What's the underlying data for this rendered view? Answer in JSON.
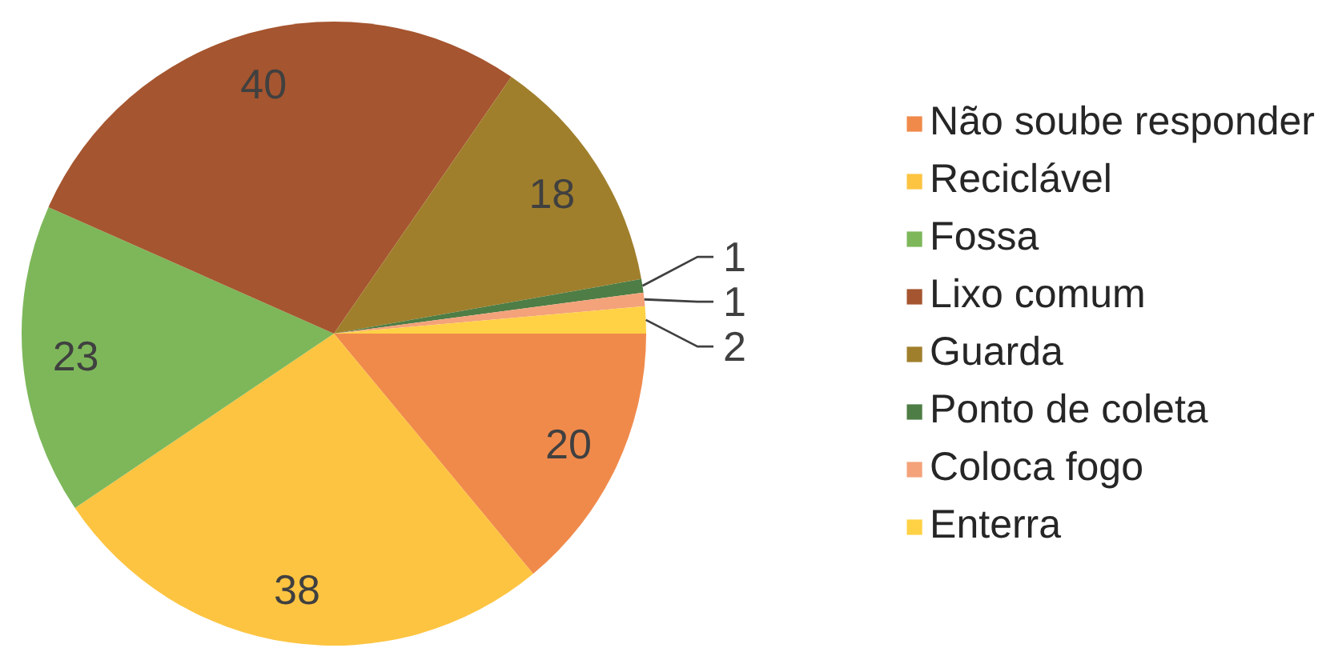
{
  "chart_data": {
    "type": "pie",
    "categories": [
      "Não soube responder",
      "Reciclável",
      "Fossa",
      "Lixo comum",
      "Guarda",
      "Ponto de coleta",
      "Coloca fogo",
      "Enterra"
    ],
    "values": [
      20,
      38,
      23,
      40,
      18,
      1,
      1,
      2
    ],
    "colors": [
      "#f08a4b",
      "#fdc441",
      "#7db75a",
      "#a5552f",
      "#a07f2c",
      "#4e7d45",
      "#f4a27a",
      "#ffd145"
    ],
    "data_labels": true,
    "legend": "right"
  }
}
